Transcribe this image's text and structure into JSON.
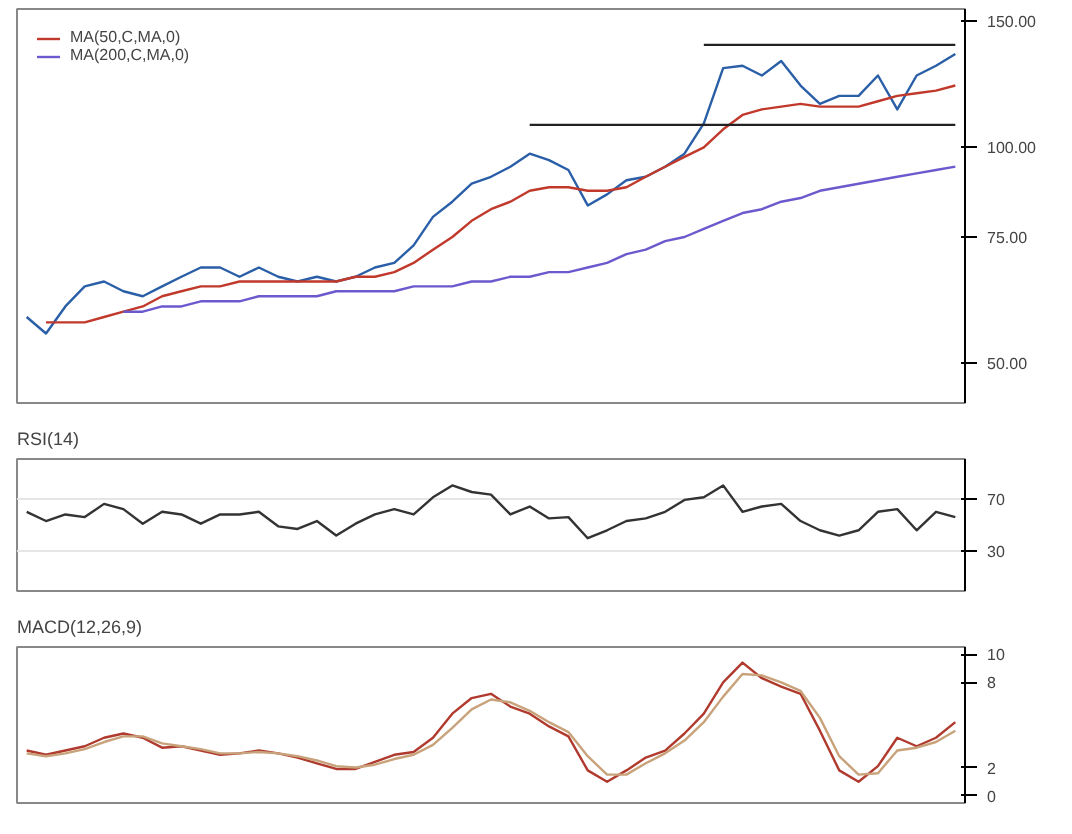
{
  "chart_data": [
    {
      "type": "line",
      "log": "y",
      "ylim": [
        44,
        156
      ],
      "yticks": [
        {
          "value": 150,
          "label": "150.00"
        },
        {
          "value": 100,
          "label": "100.00"
        },
        {
          "value": 75,
          "label": "75.00"
        },
        {
          "value": 50,
          "label": "50.00"
        }
      ],
      "grid": false,
      "legend": "top left",
      "tick_labels": "y",
      "categories": [
        null,
        null,
        null,
        null,
        null,
        null,
        null,
        null,
        null,
        null,
        null,
        null,
        null,
        null,
        null,
        null,
        null,
        null,
        null,
        null,
        null,
        null,
        null,
        null,
        null,
        null,
        null,
        null,
        null,
        null,
        null,
        null,
        null,
        null,
        null,
        null,
        null,
        null,
        null,
        null,
        null,
        null,
        null,
        null,
        null,
        null,
        null,
        null,
        null
      ],
      "series": [
        {
          "color": "#2a5fa8",
          "values": [
            58,
            55,
            60,
            64,
            65,
            63,
            62,
            64,
            66,
            68,
            68,
            66,
            68,
            66,
            65,
            66,
            65,
            66,
            68,
            69,
            73,
            80,
            84,
            89,
            91,
            94,
            98,
            96,
            93,
            83,
            86,
            90,
            91,
            94,
            98,
            108,
            129,
            130,
            126,
            132,
            122,
            115,
            118,
            118,
            126,
            113,
            126,
            130,
            135
          ]
        },
        {
          "name": "MA(50,C,MA,0)",
          "color": "#c0392b",
          "values": [
            null,
            57,
            57,
            57,
            58,
            59,
            60,
            62,
            63,
            64,
            64,
            65,
            65,
            65,
            65,
            65,
            65,
            66,
            66,
            67,
            69,
            72,
            75,
            79,
            82,
            84,
            87,
            88,
            88,
            87,
            87,
            88,
            91,
            94,
            97,
            100,
            106,
            111,
            113,
            114,
            115,
            114,
            114,
            114,
            116,
            118,
            119,
            120,
            122
          ]
        },
        {
          "name": "MA(200,C,MA,0)",
          "color": "#6a5acd",
          "values": [
            null,
            null,
            null,
            null,
            null,
            59,
            59,
            60,
            60,
            61,
            61,
            61,
            62,
            62,
            62,
            62,
            63,
            63,
            63,
            63,
            64,
            64,
            64,
            65,
            65,
            66,
            66,
            67,
            67,
            68,
            69,
            71,
            72,
            74,
            75,
            77,
            79,
            81,
            82,
            84,
            85,
            87,
            88,
            89,
            90,
            91,
            92,
            93,
            94
          ]
        },
        {
          "color": "#222222",
          "values": [
            null,
            null,
            null,
            null,
            null,
            null,
            null,
            null,
            null,
            null,
            null,
            null,
            null,
            null,
            null,
            null,
            null,
            null,
            null,
            null,
            null,
            null,
            null,
            null,
            null,
            null,
            null,
            null,
            null,
            null,
            null,
            null,
            null,
            null,
            null,
            139,
            139,
            139,
            139,
            139,
            139,
            139,
            139,
            139,
            139,
            139,
            139,
            139,
            139
          ]
        },
        {
          "color": "#222222",
          "values": [
            null,
            null,
            null,
            null,
            null,
            null,
            null,
            null,
            null,
            null,
            null,
            null,
            null,
            null,
            null,
            null,
            null,
            null,
            null,
            null,
            null,
            null,
            null,
            null,
            null,
            null,
            107.5,
            107.5,
            107.5,
            107.5,
            107.5,
            107.5,
            107.5,
            107.5,
            107.5,
            107.5,
            107.5,
            107.5,
            107.5,
            107.5,
            107.5,
            107.5,
            107.5,
            107.5,
            107.5,
            107.5,
            107.5,
            107.5,
            107.5
          ]
        }
      ]
    },
    {
      "type": "line",
      "title": "RSI(14)",
      "ylim": [
        0,
        100
      ],
      "yticks": [
        70,
        30
      ],
      "grid": "y",
      "tick_labels": "y",
      "categories": [
        null,
        null,
        null,
        null,
        null,
        null,
        null,
        null,
        null,
        null,
        null,
        null,
        null,
        null,
        null,
        null,
        null,
        null,
        null,
        null,
        null,
        null,
        null,
        null,
        null,
        null,
        null,
        null,
        null,
        null,
        null,
        null,
        null,
        null,
        null,
        null,
        null,
        null,
        null,
        null,
        null,
        null,
        null,
        null,
        null,
        null,
        null,
        null,
        null
      ],
      "series": [
        {
          "color": "#333333",
          "values": [
            60,
            53,
            58,
            56,
            66,
            62,
            51,
            60,
            58,
            51,
            58,
            58,
            60,
            49,
            47,
            53,
            42,
            51,
            58,
            62,
            58,
            71,
            80,
            75,
            73,
            58,
            64,
            55,
            56,
            40,
            46,
            53,
            55,
            60,
            69,
            71,
            80,
            60,
            64,
            66,
            53,
            46,
            42,
            46,
            60,
            62,
            46,
            60,
            56
          ]
        }
      ]
    },
    {
      "type": "line",
      "title": "MACD(12,26,9)",
      "ylim": [
        -0.5,
        10.5
      ],
      "yticks": [
        0,
        2,
        8,
        10
      ],
      "grid": false,
      "tick_labels": "y",
      "categories": [
        null,
        null,
        null,
        null,
        null,
        null,
        null,
        null,
        null,
        null,
        null,
        null,
        null,
        null,
        null,
        null,
        null,
        null,
        null,
        null,
        null,
        null,
        null,
        null,
        null,
        null,
        null,
        null,
        null,
        null,
        null,
        null,
        null,
        null,
        null,
        null,
        null,
        null,
        null,
        null,
        null,
        null,
        null,
        null,
        null,
        null,
        null,
        null,
        null
      ],
      "series": [
        {
          "color": "#b03a2e",
          "values": [
            3.2,
            2.9,
            3.2,
            3.5,
            4.1,
            4.4,
            4.1,
            3.4,
            3.5,
            3.2,
            2.9,
            3.0,
            3.2,
            3.0,
            2.7,
            2.3,
            1.9,
            1.9,
            2.4,
            2.9,
            3.1,
            4.1,
            5.8,
            6.9,
            7.2,
            6.3,
            5.8,
            4.9,
            4.2,
            1.8,
            1.0,
            1.8,
            2.7,
            3.2,
            4.4,
            5.8,
            8.0,
            9.4,
            8.3,
            7.7,
            7.2,
            4.6,
            1.8,
            1.0,
            2.1,
            4.1,
            3.5,
            4.1,
            5.2
          ]
        },
        {
          "color": "#c8a27a",
          "values": [
            3.0,
            2.8,
            3.0,
            3.3,
            3.8,
            4.2,
            4.2,
            3.7,
            3.5,
            3.3,
            3.0,
            3.0,
            3.1,
            3.0,
            2.8,
            2.5,
            2.1,
            2.0,
            2.2,
            2.6,
            2.9,
            3.6,
            4.8,
            6.1,
            6.8,
            6.6,
            6.0,
            5.2,
            4.5,
            2.8,
            1.5,
            1.5,
            2.3,
            3.0,
            3.9,
            5.2,
            7.0,
            8.6,
            8.5,
            8.0,
            7.4,
            5.5,
            2.8,
            1.5,
            1.6,
            3.2,
            3.4,
            3.8,
            4.6
          ]
        }
      ]
    }
  ]
}
